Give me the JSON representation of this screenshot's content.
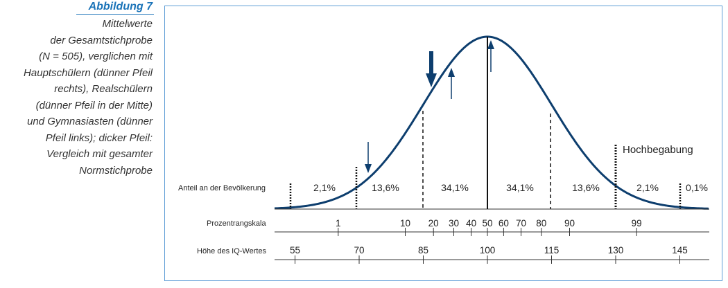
{
  "caption": {
    "title": "Abbildung 7",
    "body": "Mittelwerte\nder Gesamtstichprobe\n(N = 505), verglichen mit\nHauptschülern (dünner Pfeil\nrechts), Realschülern\n(dünner Pfeil in der Mitte)\nund Gymnasiasten (dünner\nPfeil links); dicker Pfeil:\nVergleich mit gesamter\nNormstichprobe"
  },
  "diagram": {
    "row_labels": {
      "population": "Anteil an der Bevölkerung",
      "percentile": "Prozentrangskala",
      "iq": "Höhe des IQ-Wertes"
    },
    "segment_percentages": [
      "2,1%",
      "13,6%",
      "34,1%",
      "34,1%",
      "13,6%",
      "2,1%",
      "0,1%"
    ],
    "giftedness_label": "Hochbegabung",
    "percentile_ticks": [
      "1",
      "10",
      "20",
      "30",
      "40",
      "50",
      "60",
      "70",
      "80",
      "90",
      "99"
    ],
    "iq_ticks": [
      "55",
      "70",
      "85",
      "100",
      "115",
      "130",
      "145"
    ],
    "colors": {
      "curve": "#0d3e6e",
      "arrow": "#0d3e6e",
      "axis": "#333333",
      "frame": "#5b9bd5",
      "caption_title": "#1a73b8"
    },
    "arrows": [
      "thick-arrow-down",
      "thin-arrow-down",
      "thin-arrow-up-middle",
      "thin-arrow-up-right"
    ]
  }
}
